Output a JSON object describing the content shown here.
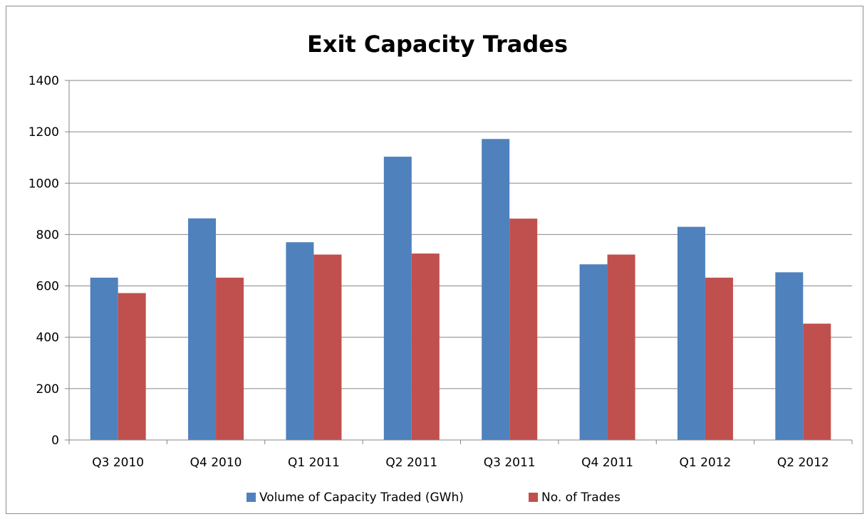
{
  "chart_data": {
    "type": "bar",
    "title": "Exit Capacity Trades",
    "xlabel": "",
    "ylabel": "",
    "categories": [
      "Q3 2010",
      "Q4 2010",
      "Q1 2011",
      "Q2 2011",
      "Q3 2011",
      "Q4 2011",
      "Q1 2012",
      "Q2 2012"
    ],
    "series": [
      {
        "name": "Volume of Capacity Traded (GWh)",
        "color": "#4f81bd",
        "values": [
          632,
          863,
          770,
          1103,
          1172,
          684,
          830,
          653
        ]
      },
      {
        "name": "No. of Trades",
        "color": "#c0504d",
        "values": [
          572,
          632,
          722,
          726,
          862,
          722,
          632,
          453
        ]
      }
    ],
    "ylim": [
      0,
      1400
    ],
    "yticks": [
      "0",
      "200",
      "400",
      "600",
      "800",
      "1000",
      "1200",
      "1400"
    ],
    "grid": true,
    "legend_position": "bottom"
  }
}
